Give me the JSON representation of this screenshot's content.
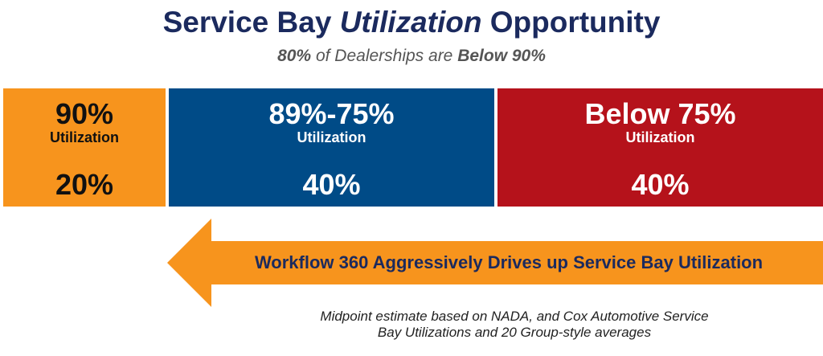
{
  "title": {
    "part1": "Service Bay ",
    "emphasis": "Utilization",
    "part2": " Opportunity"
  },
  "subtitle": {
    "pct": "80%",
    "middle": " of Dealerships are ",
    "threshold": "Below 90%"
  },
  "chart_data": {
    "type": "bar",
    "orientation": "horizontal-stacked",
    "unit_label": "Utilization",
    "categories": [
      "90%",
      "89%-75%",
      "Below 75%"
    ],
    "values": [
      20,
      40,
      40
    ],
    "value_labels": [
      "20%",
      "40%",
      "40%"
    ],
    "colors": [
      "#f7941d",
      "#004b87",
      "#b5121b"
    ],
    "title": "Service Bay Utilization Opportunity",
    "subtitle": "80% of Dealerships are Below 90%"
  },
  "arrow": {
    "label": "Workflow 360 Aggressively Drives up Service Bay Utilization",
    "color": "#f7941d"
  },
  "footnote": {
    "line1": "Midpoint estimate based on NADA, and Cox Automotive Service",
    "line2": "Bay Utilizations and 20 Group-style averages"
  }
}
